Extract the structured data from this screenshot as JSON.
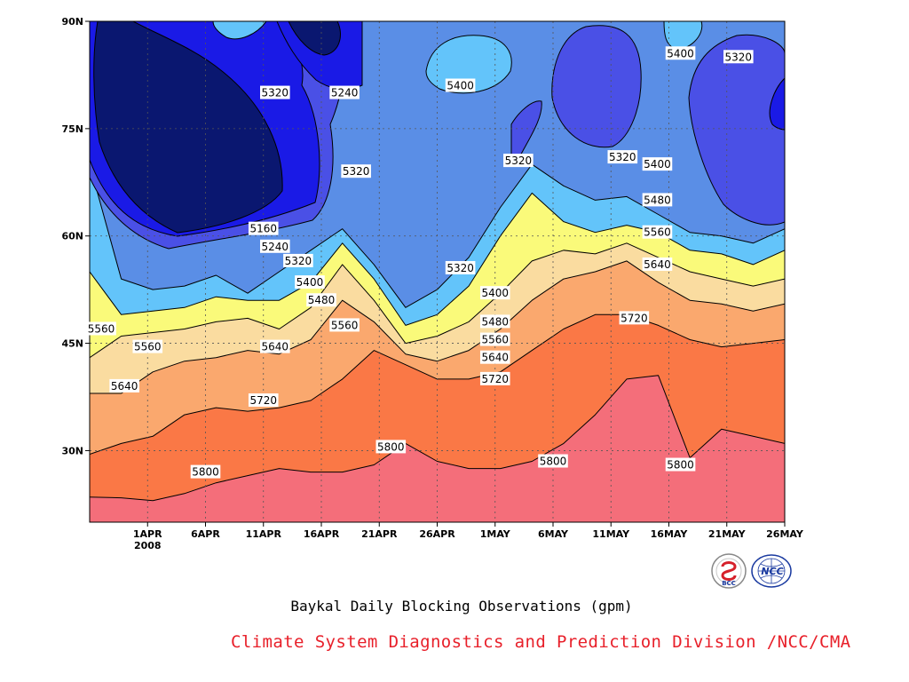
{
  "chart_data": {
    "type": "contour",
    "title": "Baykal Daily Blocking Observations (gpm)",
    "credit": "Climate System Diagnostics and Prediction Division /NCC/CMA",
    "logos": [
      "BCC",
      "NCC"
    ],
    "x_axis": {
      "range": [
        "2008-03-27",
        "2008-05-26"
      ],
      "ticks": [
        "1APR",
        "6APR",
        "11APR",
        "16APR",
        "21APR",
        "26APR",
        "1MAY",
        "6MAY",
        "11MAY",
        "16MAY",
        "21MAY",
        "26MAY"
      ],
      "year_label": "2008"
    },
    "y_axis": {
      "range": [
        20,
        90
      ],
      "ticks": [
        "30N",
        "45N",
        "60N",
        "75N",
        "90N"
      ]
    },
    "grid": true,
    "levels": [
      5160,
      5240,
      5320,
      5400,
      5480,
      5560,
      5640,
      5720,
      5800
    ],
    "fill_colors": [
      "#0a1770",
      "#1a1ae6",
      "#4a50e6",
      "#5a8ee6",
      "#63c4fa",
      "#fafa7a",
      "#fadca0",
      "#faa86e",
      "#fa7846",
      "#f46e7a"
    ],
    "contours": [
      {
        "level": 5800,
        "lat": [
          23.5,
          23.4,
          23.0,
          24.0,
          25.5,
          26.5,
          27.5,
          27.0,
          27.0,
          28.0,
          31.0,
          28.5,
          27.5,
          27.5,
          28.5,
          31.0,
          35.0,
          40.0,
          40.5,
          29.0,
          33.0,
          32.0,
          31.0
        ]
      },
      {
        "level": 5720,
        "lat": [
          29.5,
          31.0,
          32.0,
          35.0,
          36.0,
          35.5,
          36.0,
          37.0,
          40.0,
          44.0,
          42.0,
          40.0,
          40.0,
          41.0,
          44.0,
          47.0,
          49.0,
          49.0,
          47.5,
          45.5,
          44.5,
          45.0,
          45.5
        ]
      },
      {
        "level": 5640,
        "lat": [
          38.0,
          38.0,
          41.0,
          42.5,
          43.0,
          44.0,
          43.5,
          45.5,
          51.0,
          48.0,
          43.5,
          42.5,
          44.0,
          47.0,
          51.0,
          54.0,
          55.0,
          56.5,
          53.5,
          51.0,
          50.5,
          49.5,
          50.5
        ]
      },
      {
        "level": 5560,
        "lat": [
          43.0,
          46.0,
          46.5,
          47.0,
          48.0,
          48.5,
          47.0,
          50.0,
          56.0,
          51.0,
          45.0,
          46.0,
          48.0,
          52.0,
          56.5,
          58.0,
          57.5,
          59.0,
          57.0,
          55.0,
          54.0,
          53.0,
          54.0
        ]
      },
      {
        "level": 5480,
        "lat": [
          55.0,
          49.0,
          49.5,
          50.0,
          51.5,
          51.0,
          51.0,
          53.5,
          59.0,
          54.0,
          47.5,
          49.0,
          53.0,
          60.0,
          66.0,
          62.0,
          60.5,
          61.5,
          60.5,
          58.0,
          57.5,
          56.0,
          58.0
        ]
      },
      {
        "level": 5400,
        "lat": [
          70.0,
          54.0,
          52.5,
          53.0,
          54.5,
          52.0,
          55.0,
          58.0,
          61.0,
          56.0,
          50.0,
          52.5,
          57.0,
          64.0,
          70.0,
          67.0,
          65.0,
          65.5,
          63.0,
          60.5,
          60.0,
          59.0,
          61.0
        ]
      }
    ],
    "labels": [
      {
        "text": "5160",
        "date": "2008-04-11",
        "lat": 61.0
      },
      {
        "text": "5240",
        "date": "2008-04-12",
        "lat": 58.5
      },
      {
        "text": "5320",
        "date": "2008-04-14",
        "lat": 56.5
      },
      {
        "text": "5400",
        "date": "2008-04-15",
        "lat": 53.5
      },
      {
        "text": "5480",
        "date": "2008-04-16",
        "lat": 51.0
      },
      {
        "text": "5560",
        "date": "2008-04-18",
        "lat": 47.5
      },
      {
        "text": "5640",
        "date": "2008-04-12",
        "lat": 44.5
      },
      {
        "text": "5720",
        "date": "2008-04-11",
        "lat": 37.0
      },
      {
        "text": "5800",
        "date": "2008-04-06",
        "lat": 27.0
      },
      {
        "text": "5560",
        "date": "2008-03-28",
        "lat": 47.0
      },
      {
        "text": "5560",
        "date": "2008-04-01",
        "lat": 44.5
      },
      {
        "text": "5640",
        "date": "2008-03-30",
        "lat": 39.0
      },
      {
        "text": "5800",
        "date": "2008-04-22",
        "lat": 30.5
      },
      {
        "text": "5240",
        "date": "2008-04-18",
        "lat": 80.0
      },
      {
        "text": "5320",
        "date": "2008-04-12",
        "lat": 80.0
      },
      {
        "text": "5320",
        "date": "2008-04-19",
        "lat": 69.0
      },
      {
        "text": "5400",
        "date": "2008-04-28",
        "lat": 81.0
      },
      {
        "text": "5320",
        "date": "2008-04-28",
        "lat": 55.5
      },
      {
        "text": "5400",
        "date": "2008-05-01",
        "lat": 52.0
      },
      {
        "text": "5480",
        "date": "2008-05-01",
        "lat": 48.0
      },
      {
        "text": "5560",
        "date": "2008-05-01",
        "lat": 45.5
      },
      {
        "text": "5640",
        "date": "2008-05-01",
        "lat": 43.0
      },
      {
        "text": "5720",
        "date": "2008-05-01",
        "lat": 40.0
      },
      {
        "text": "5320",
        "date": "2008-05-03",
        "lat": 70.5
      },
      {
        "text": "5800",
        "date": "2008-05-06",
        "lat": 28.5
      },
      {
        "text": "5320",
        "date": "2008-05-12",
        "lat": 71.0
      },
      {
        "text": "5400",
        "date": "2008-05-15",
        "lat": 70.0
      },
      {
        "text": "5480",
        "date": "2008-05-15",
        "lat": 65.0
      },
      {
        "text": "5560",
        "date": "2008-05-15",
        "lat": 60.5
      },
      {
        "text": "5640",
        "date": "2008-05-15",
        "lat": 56.0
      },
      {
        "text": "5720",
        "date": "2008-05-13",
        "lat": 48.5
      },
      {
        "text": "5800",
        "date": "2008-05-17",
        "lat": 28.0
      },
      {
        "text": "5400",
        "date": "2008-05-17",
        "lat": 85.5
      },
      {
        "text": "5320",
        "date": "2008-05-22",
        "lat": 85.0
      }
    ]
  }
}
